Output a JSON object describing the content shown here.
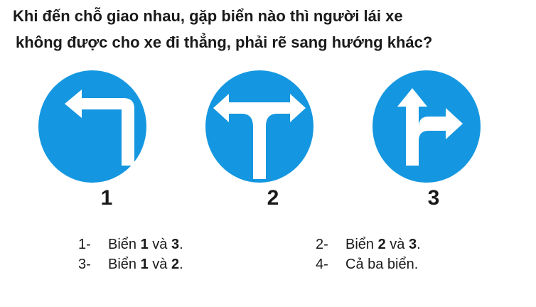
{
  "question": {
    "line1": "Khi đến chỗ giao nhau, gặp biển nào thì người lái xe",
    "line2": "không được cho xe đi thẳng, phải rẽ sang hướng khác?"
  },
  "signs": [
    {
      "number": "1",
      "icon": "turn-left-arrow-icon"
    },
    {
      "number": "2",
      "icon": "left-right-arrow-icon"
    },
    {
      "number": "3",
      "icon": "straight-or-right-arrow-icon"
    }
  ],
  "colors": {
    "sign_blue": "#1497e0",
    "arrow_white": "#ffffff",
    "text": "#1a1a1a"
  },
  "answers": [
    {
      "index": "1-",
      "prefix": "Biển ",
      "bold1": "1",
      "mid": " và ",
      "bold2": "3",
      "suffix": "."
    },
    {
      "index": "2-",
      "prefix": "Biển ",
      "bold1": "2",
      "mid": " và ",
      "bold2": "3",
      "suffix": "."
    },
    {
      "index": "3-",
      "prefix": "Biển ",
      "bold1": "1",
      "mid": " và ",
      "bold2": "2",
      "suffix": "."
    },
    {
      "index": "4-",
      "text": "Cả ba biển."
    }
  ]
}
